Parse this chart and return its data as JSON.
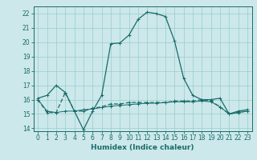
{
  "xlabel": "Humidex (Indice chaleur)",
  "bg_color": "#cce8ea",
  "grid_color": "#99cccc",
  "line_color": "#1a6b6b",
  "xlim": [
    -0.5,
    23.5
  ],
  "ylim": [
    13.8,
    22.5
  ],
  "yticks": [
    14,
    15,
    16,
    17,
    18,
    19,
    20,
    21,
    22
  ],
  "xticks": [
    0,
    1,
    2,
    3,
    4,
    5,
    6,
    7,
    8,
    9,
    10,
    11,
    12,
    13,
    14,
    15,
    16,
    17,
    18,
    19,
    20,
    21,
    22,
    23
  ],
  "series1_x": [
    0,
    1,
    2,
    3,
    4,
    5,
    6,
    7,
    8,
    9,
    10,
    11,
    12,
    13,
    14,
    15,
    16,
    17,
    18,
    19,
    20,
    21,
    22,
    23
  ],
  "series1_y": [
    16.1,
    16.3,
    17.0,
    16.5,
    15.2,
    13.9,
    15.2,
    16.3,
    19.9,
    19.95,
    20.5,
    21.6,
    22.1,
    22.0,
    21.8,
    20.1,
    17.5,
    16.3,
    16.0,
    16.0,
    16.1,
    15.0,
    15.2,
    15.3
  ],
  "series2_x": [
    0,
    1,
    2,
    3,
    4,
    5,
    6,
    7,
    8,
    9,
    10,
    11,
    12,
    13,
    14,
    15,
    16,
    17,
    18,
    19,
    20,
    21,
    22,
    23
  ],
  "series2_y": [
    16.0,
    15.1,
    15.1,
    16.5,
    15.2,
    15.2,
    15.4,
    15.5,
    15.7,
    15.7,
    15.8,
    15.8,
    15.8,
    15.8,
    15.8,
    15.9,
    15.9,
    15.9,
    16.0,
    15.9,
    15.5,
    15.0,
    15.1,
    15.2
  ],
  "series3_x": [
    0,
    1,
    2,
    3,
    4,
    5,
    6,
    7,
    8,
    9,
    10,
    11,
    12,
    13,
    14,
    15,
    16,
    17,
    18,
    19,
    20,
    21,
    22,
    23
  ],
  "series3_y": [
    16.0,
    15.2,
    15.1,
    15.2,
    15.2,
    15.3,
    15.35,
    15.45,
    15.55,
    15.6,
    15.65,
    15.7,
    15.75,
    15.75,
    15.8,
    15.85,
    15.85,
    15.85,
    15.9,
    15.85,
    15.5,
    15.0,
    15.1,
    15.2
  ]
}
